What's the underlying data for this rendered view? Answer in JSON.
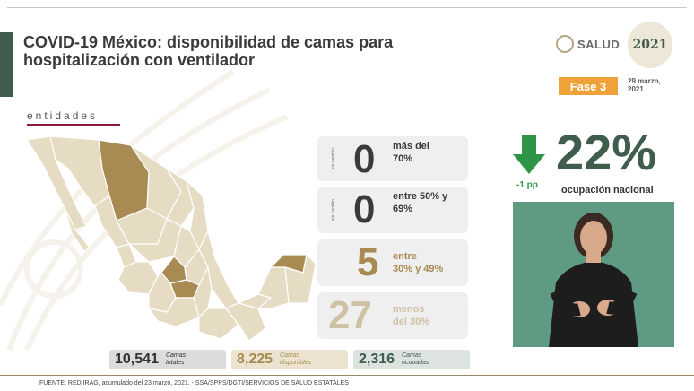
{
  "header": {
    "title_line1": "COVID-19 México: disponibilidad de camas para",
    "title_line2": "hospitalización con ventilador",
    "salud_logo_text": "SALUD",
    "year_logo_text": "2021",
    "phase": "Fase 3",
    "date_line1": "29 marzo,",
    "date_line2": "2021"
  },
  "section_label": "entidades",
  "categories": [
    {
      "change_label": "sin cambio",
      "count": "0",
      "desc_line1": "más del",
      "desc_line2": "70%"
    },
    {
      "change_label": "sin cambio",
      "count": "0",
      "desc_line1": "entre 50% y",
      "desc_line2": "69%"
    },
    {
      "change_label": "",
      "count": "5",
      "desc_line1": "entre",
      "desc_line2": "30% y 49%"
    },
    {
      "change_label": "",
      "count": "27",
      "desc_line1": "menos",
      "desc_line2": "del 30%"
    }
  ],
  "stats": [
    {
      "value": "10,541",
      "label_line1": "Camas",
      "label_line2": "totales"
    },
    {
      "value": "8,225",
      "label_line1": "Camas",
      "label_line2": "disponibles"
    },
    {
      "value": "2,316",
      "label_line1": "Camas",
      "label_line2": "ocupadas"
    }
  ],
  "national": {
    "change": "-1 pp",
    "percent": "22%",
    "label": "ocupación nacional"
  },
  "footer": "FUENTE: RED IRAG, acumulado del 23 marzo, 2021.  - SSA/SPPS/DGTI/SERVICIOS DE SALUD ESTATALES",
  "colors": {
    "green_dark": "#3f5c4d",
    "gold": "#a88b52",
    "beige": "#cfc2a4",
    "phase_orange": "#f0a23a",
    "arrow_green": "#2e9448",
    "video_bg": "#5f9a82"
  },
  "icons": {
    "down_arrow": "arrow-down-icon"
  }
}
